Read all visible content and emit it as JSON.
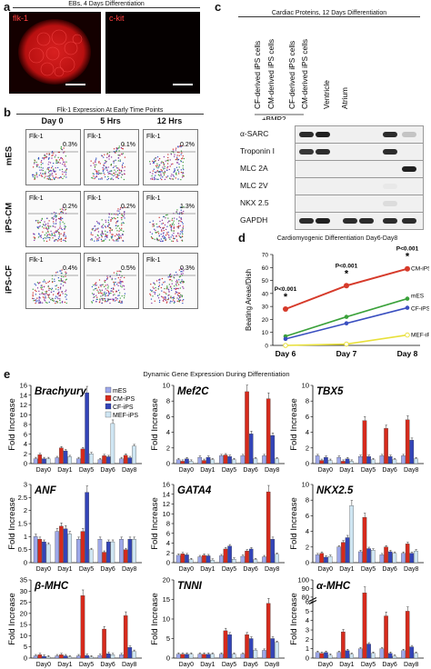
{
  "figure": {
    "panels": [
      "a",
      "b",
      "c",
      "d",
      "e"
    ],
    "panel_a": {
      "header": "EBs, 4 Days Differentiation",
      "labels": [
        "flk-1",
        "c-kit"
      ]
    },
    "panel_b": {
      "header": "Flk-1 Expression At Early Time Points",
      "columns": [
        "Day 0",
        "5 Hrs",
        "12 Hrs"
      ],
      "rows": [
        "mES",
        "iPS-CM",
        "iPS-CF"
      ],
      "plot_label": "Flk-1",
      "percents": [
        [
          "0.3%",
          "0.1%",
          "0.2%"
        ],
        [
          "0.2%",
          "0.2%",
          "1.3%"
        ],
        [
          "0.4%",
          "0.5%",
          "0.3%"
        ]
      ]
    },
    "panel_c": {
      "header": "Cardiac Proteins, 12 Days Differentiation",
      "columns": [
        "CF-derived iPS cells",
        "CM-derived iPS cells",
        "CF-derived iPS cells",
        "CM-derived iPS cells",
        "Ventricle",
        "Atrium"
      ],
      "bmp_label": "+BMP2",
      "rows": [
        "α-SARC",
        "Troponin I",
        "MLC 2A",
        "MLC 2V",
        "NKX 2.5",
        "GAPDH"
      ]
    },
    "panel_d": {
      "header": "Cardiomyogenic Differentiation Day6-Day8",
      "pvalues": [
        "P<0.001",
        "P<0.001",
        "P<0.001"
      ],
      "star": "*"
    },
    "panel_e": {
      "header": "Dynamic Gene Expression During Differentiation",
      "ylabel": "Fold Increase"
    }
  },
  "colors": {
    "mES": "#9ea8ea",
    "CM-iPS": "#d62a1c",
    "CF-iPS": "#3344b8",
    "MEF-iPS": "#cfe6f3",
    "line_CM": "#d63a2a",
    "line_mES": "#3aa13a",
    "line_CF": "#3a4fc0",
    "line_MEF": "#e8e03a"
  },
  "chart_data": [
    {
      "type": "line",
      "x": [
        "Day 6",
        "Day 7",
        "Day 8"
      ],
      "ylabel": "Beating Areas/Dish",
      "ylim": [
        0,
        70
      ],
      "yticks": [
        0,
        10,
        20,
        30,
        40,
        50,
        60,
        70
      ],
      "series": [
        {
          "name": "CM-iPS",
          "values": [
            28,
            46,
            59
          ]
        },
        {
          "name": "mES",
          "values": [
            7,
            22,
            36
          ]
        },
        {
          "name": "CF-iPS",
          "values": [
            5,
            17,
            29
          ]
        },
        {
          "name": "MEF-iPS",
          "values": [
            0,
            1,
            8
          ]
        }
      ]
    },
    {
      "type": "bar",
      "title": "Brachyury",
      "categories": [
        "Day0",
        "Day1",
        "Day5",
        "Day6",
        "Day8"
      ],
      "ylim": [
        0,
        16
      ],
      "yticks": [
        0,
        2,
        4,
        6,
        8,
        10,
        12,
        14,
        16
      ],
      "legend": [
        "mES",
        "CM-iPS",
        "CF-iPS",
        "MEF-iPS"
      ],
      "series": [
        {
          "name": "mES",
          "values": [
            1,
            1.2,
            1,
            0.8,
            1
          ]
        },
        {
          "name": "CM-iPS",
          "values": [
            1.8,
            3.2,
            3,
            1.6,
            1.7
          ]
        },
        {
          "name": "CF-iPS",
          "values": [
            1,
            2.6,
            14.5,
            1.4,
            1.2
          ]
        },
        {
          "name": "MEF-iPS",
          "values": [
            1,
            1.4,
            2,
            8.2,
            3.6
          ]
        }
      ]
    },
    {
      "type": "bar",
      "title": "Mef2C",
      "categories": [
        "Day0",
        "Day1",
        "Day5",
        "Day6",
        "Day8"
      ],
      "ylim": [
        0,
        10
      ],
      "yticks": [
        0,
        2,
        4,
        6,
        8,
        10
      ],
      "series": [
        {
          "name": "mES",
          "values": [
            0.5,
            0.8,
            1,
            1,
            1
          ]
        },
        {
          "name": "CM-iPS",
          "values": [
            0.3,
            0.4,
            1.1,
            9.2,
            8.3
          ]
        },
        {
          "name": "CF-iPS",
          "values": [
            0.6,
            0.8,
            0.9,
            3.8,
            3.6
          ]
        },
        {
          "name": "MEF-iPS",
          "values": [
            0.3,
            0.5,
            0.5,
            0.6,
            0.6
          ]
        }
      ]
    },
    {
      "type": "bar",
      "title": "TBX5",
      "categories": [
        "Day0",
        "Day1",
        "Day5",
        "Day6",
        "Day8"
      ],
      "ylim": [
        0,
        10
      ],
      "yticks": [
        0,
        2,
        4,
        6,
        8,
        10
      ],
      "series": [
        {
          "name": "mES",
          "values": [
            1,
            0.8,
            0.9,
            1,
            1
          ]
        },
        {
          "name": "CM-iPS",
          "values": [
            0.4,
            0.3,
            5.5,
            4.5,
            5.6
          ]
        },
        {
          "name": "CF-iPS",
          "values": [
            0.8,
            0.6,
            0.9,
            0.9,
            3
          ]
        },
        {
          "name": "MEF-iPS",
          "values": [
            0.4,
            0.3,
            0.5,
            0.5,
            0.6
          ]
        }
      ]
    },
    {
      "type": "bar",
      "title": "ANF",
      "categories": [
        "Day0",
        "Day1",
        "Day5",
        "Day6",
        "Day8"
      ],
      "ylim": [
        0,
        3
      ],
      "yticks": [
        0,
        0.5,
        1,
        1.5,
        2,
        2.5,
        3
      ],
      "series": [
        {
          "name": "mES",
          "values": [
            1,
            1.2,
            0.9,
            0.9,
            0.9
          ]
        },
        {
          "name": "CM-iPS",
          "values": [
            0.9,
            1.4,
            1.2,
            0.4,
            0.5
          ]
        },
        {
          "name": "CF-iPS",
          "values": [
            0.8,
            1.3,
            2.7,
            0.8,
            0.9
          ]
        },
        {
          "name": "MEF-iPS",
          "values": [
            0.7,
            1.1,
            0.5,
            0.8,
            0.9
          ]
        }
      ]
    },
    {
      "type": "bar",
      "title": "GATA4",
      "categories": [
        "Day0",
        "Day1",
        "Day5",
        "Day6",
        "Day8"
      ],
      "ylim": [
        0,
        16
      ],
      "yticks": [
        0,
        2,
        4,
        6,
        8,
        10,
        12,
        14,
        16
      ],
      "series": [
        {
          "name": "mES",
          "values": [
            1.5,
            1.2,
            1.4,
            1.3,
            1.2
          ]
        },
        {
          "name": "CM-iPS",
          "values": [
            1.8,
            1.5,
            2.8,
            2.4,
            14.5
          ]
        },
        {
          "name": "CF-iPS",
          "values": [
            1.6,
            1.4,
            3.4,
            2.8,
            4.8
          ]
        },
        {
          "name": "MEF-iPS",
          "values": [
            0.6,
            0.5,
            0.7,
            0.6,
            1.7
          ]
        }
      ]
    },
    {
      "type": "bar",
      "title": "NKX2.5",
      "categories": [
        "Day0",
        "Day1",
        "Day5",
        "Day6",
        "Day8"
      ],
      "ylim": [
        0,
        10
      ],
      "yticks": [
        0,
        2,
        4,
        6,
        8,
        10
      ],
      "series": [
        {
          "name": "mES",
          "values": [
            1,
            2,
            1.4,
            1,
            1.2
          ]
        },
        {
          "name": "CM-iPS",
          "values": [
            1.2,
            2.6,
            5.8,
            2,
            2.4
          ]
        },
        {
          "name": "CF-iPS",
          "values": [
            0.7,
            3.2,
            1.8,
            1.4,
            1.2
          ]
        },
        {
          "name": "MEF-iPS",
          "values": [
            0.8,
            7.3,
            1.6,
            1.2,
            1.5
          ]
        }
      ]
    },
    {
      "type": "bar",
      "title": "β-MHC",
      "categories": [
        "Day0",
        "Day1",
        "Day5",
        "Day6",
        "Day8"
      ],
      "ylim": [
        0,
        35
      ],
      "yticks": [
        0,
        5,
        10,
        15,
        20,
        25,
        30,
        35
      ],
      "series": [
        {
          "name": "mES",
          "values": [
            1,
            1,
            1,
            1.2,
            1.5
          ]
        },
        {
          "name": "CM-iPS",
          "values": [
            1.5,
            1.5,
            28,
            13,
            19
          ]
        },
        {
          "name": "CF-iPS",
          "values": [
            0.8,
            1,
            1.2,
            2,
            4.8
          ]
        },
        {
          "name": "MEF-iPS",
          "values": [
            0.5,
            0.5,
            0.5,
            1.5,
            3
          ]
        }
      ]
    },
    {
      "type": "bar",
      "title": "TNNI",
      "categories": [
        "Day0",
        "Day1",
        "Day5",
        "Day6",
        "Day8"
      ],
      "ylim": [
        0,
        20
      ],
      "yticks": [
        0,
        5,
        10,
        15,
        20
      ],
      "series": [
        {
          "name": "mES",
          "values": [
            1,
            1,
            1,
            1,
            2
          ]
        },
        {
          "name": "CM-iPS",
          "values": [
            1,
            1,
            7,
            6,
            14
          ]
        },
        {
          "name": "CF-iPS",
          "values": [
            1,
            1,
            6,
            5,
            5
          ]
        },
        {
          "name": "MEF-iPS",
          "values": [
            1,
            1,
            1,
            2,
            4
          ]
        }
      ]
    },
    {
      "type": "bar",
      "title": "α-MHC",
      "categories": [
        "Day0",
        "Day1",
        "Day5",
        "Day6",
        "Day8"
      ],
      "ylim": [
        0,
        100
      ],
      "yticks": [
        0,
        1,
        2,
        3,
        4,
        5,
        6,
        80,
        90,
        100
      ],
      "series": [
        {
          "name": "mES",
          "values": [
            0.6,
            0.6,
            1,
            1,
            0.8
          ]
        },
        {
          "name": "CM-iPS",
          "values": [
            0.5,
            2.8,
            85,
            4.5,
            5
          ]
        },
        {
          "name": "CF-iPS",
          "values": [
            0.6,
            0.8,
            1.5,
            0.5,
            1.2
          ]
        },
        {
          "name": "MEF-iPS",
          "values": [
            0.3,
            0.4,
            0.5,
            0.2,
            0.5
          ]
        }
      ]
    }
  ]
}
